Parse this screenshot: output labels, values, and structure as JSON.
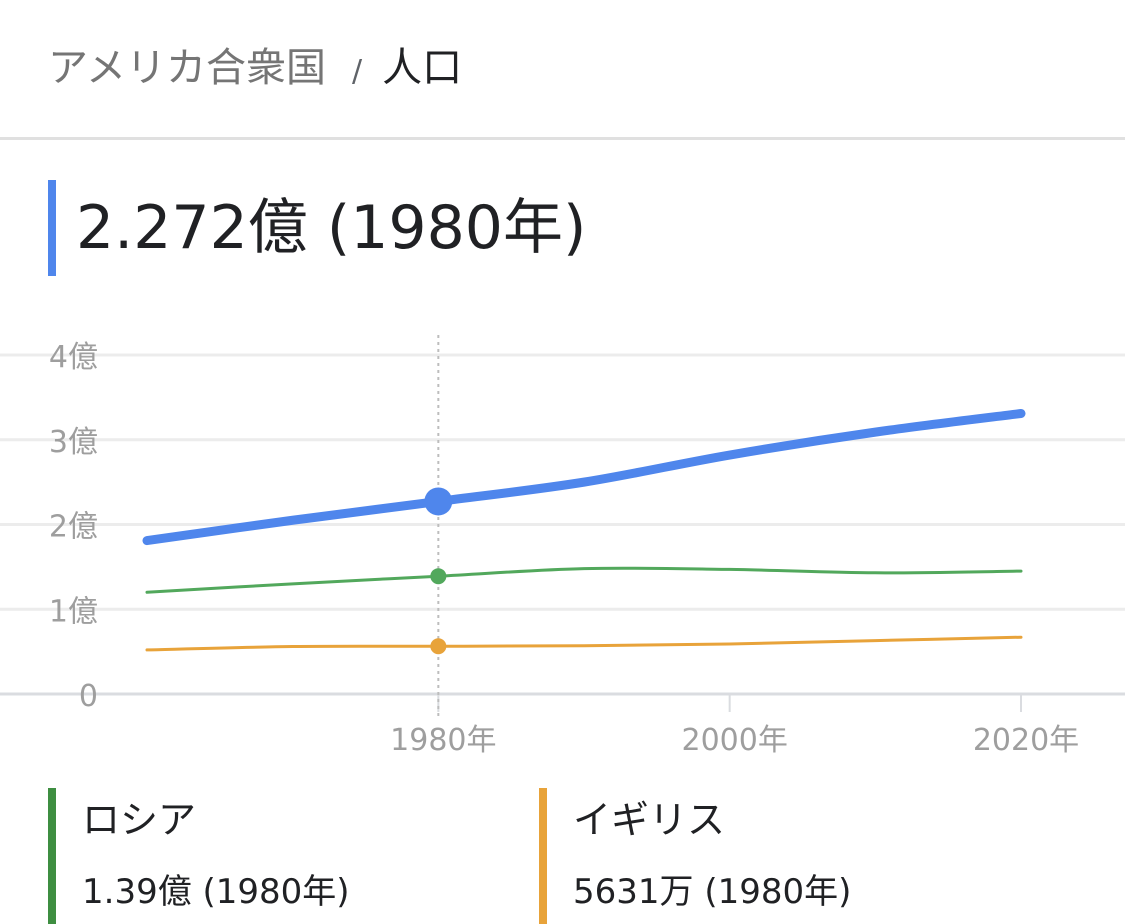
{
  "header": {
    "breadcrumb_parent": "アメリカ合衆国",
    "separator": "/",
    "breadcrumb_current": "人口"
  },
  "main": {
    "value_text": "2.272億 (1980年)",
    "accent_color": "#4f86ec"
  },
  "chart_data": {
    "type": "line",
    "y_tick_labels": [
      "0",
      "1億",
      "2億",
      "3億",
      "4億"
    ],
    "x_tick_labels": [
      "1980年",
      "2000年",
      "2020年"
    ],
    "x_ticks": [
      1980,
      2000,
      2020
    ],
    "xlim": [
      1960,
      2027
    ],
    "ylim": [
      0,
      4
    ],
    "y_unit": "億",
    "grid": true,
    "highlight_x": 1980,
    "series": [
      {
        "name": "アメリカ合衆国",
        "color": "#4f86ec",
        "x": [
          1960,
          1970,
          1980,
          1990,
          2000,
          2010,
          2020
        ],
        "values": [
          1.81,
          2.05,
          2.272,
          2.5,
          2.82,
          3.09,
          3.31
        ]
      },
      {
        "name": "ロシア",
        "color": "#52a85c",
        "x": [
          1960,
          1970,
          1980,
          1990,
          2000,
          2010,
          2020
        ],
        "values": [
          1.2,
          1.3,
          1.39,
          1.48,
          1.47,
          1.43,
          1.45
        ]
      },
      {
        "name": "イギリス",
        "color": "#e8a33a",
        "x": [
          1960,
          1970,
          1980,
          1990,
          2000,
          2010,
          2020
        ],
        "values": [
          0.52,
          0.56,
          0.5631,
          0.57,
          0.59,
          0.63,
          0.67
        ]
      }
    ]
  },
  "legend": [
    {
      "name": "ロシア",
      "value": "1.39億 (1980年)",
      "color": "#3e8e41"
    },
    {
      "name": "イギリス",
      "value": "5631万 (1980年)",
      "color": "#e8a33a"
    }
  ]
}
